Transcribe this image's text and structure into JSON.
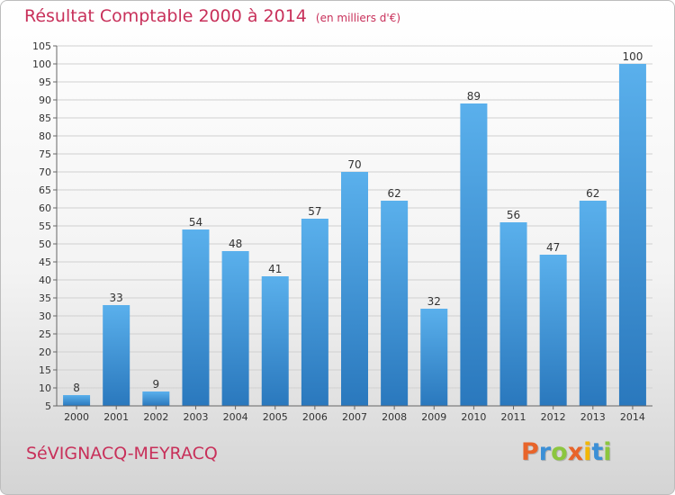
{
  "header": {
    "title": "Résultat Comptable 2000 à 2014",
    "unit": "(en milliers d'€)"
  },
  "footer": {
    "commune": "SéVIGNACQ-MEYRACQ",
    "logo_letters": [
      "P",
      "r",
      "o",
      "x",
      "i",
      "t",
      "i"
    ],
    "logo_colors": [
      "#e8642a",
      "#3b8fd6",
      "#8cc63f",
      "#e8642a",
      "#f2b705",
      "#3b8fd6",
      "#8cc63f"
    ]
  },
  "colors": {
    "title": "#c8305a",
    "bar_top": "#5ab0ec",
    "bar_bottom": "#2a78bd",
    "grid": "#d0d0d0"
  },
  "chart_data": {
    "type": "bar",
    "title": "Résultat Comptable 2000 à 2014",
    "xlabel": "",
    "ylabel": "",
    "categories": [
      "2000",
      "2001",
      "2002",
      "2003",
      "2004",
      "2005",
      "2006",
      "2007",
      "2008",
      "2009",
      "2010",
      "2011",
      "2012",
      "2013",
      "2014"
    ],
    "values": [
      8,
      33,
      9,
      54,
      48,
      41,
      57,
      70,
      62,
      32,
      89,
      56,
      47,
      62,
      100
    ],
    "ylim": [
      5,
      105
    ],
    "yticks": [
      5,
      10,
      15,
      20,
      25,
      30,
      35,
      40,
      45,
      50,
      55,
      60,
      65,
      70,
      75,
      80,
      85,
      90,
      95,
      100,
      105
    ],
    "grid": true,
    "data_labels": true
  }
}
